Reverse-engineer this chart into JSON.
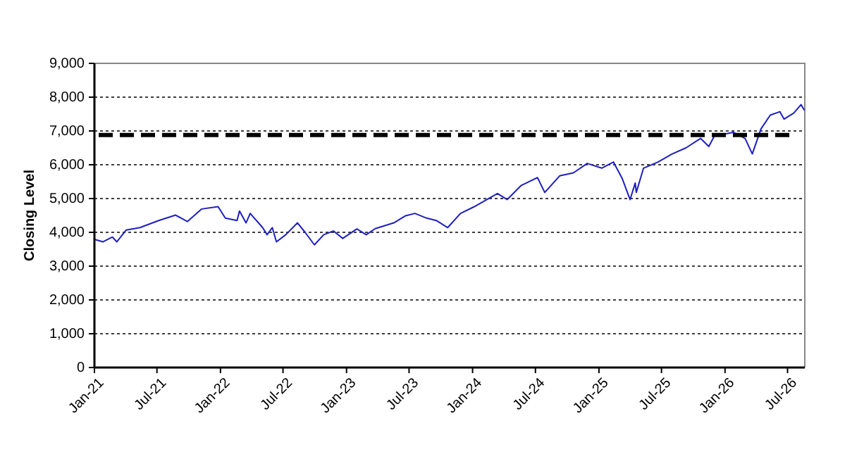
{
  "chart_data": {
    "type": "line",
    "ylabel": "Closing Level",
    "x": [
      "2021-01-01",
      "2021-01-26",
      "2021-02-22",
      "2021-03-07",
      "2021-04-03",
      "2021-05-13",
      "2021-07-06",
      "2021-08-24",
      "2021-09-27",
      "2021-11-07",
      "2021-12-25",
      "2022-01-15",
      "2022-02-18",
      "2022-02-25",
      "2022-03-16",
      "2022-03-28",
      "2022-05-03",
      "2022-05-16",
      "2022-05-31",
      "2022-06-12",
      "2022-07-09",
      "2022-08-12",
      "2022-09-03",
      "2022-09-30",
      "2022-10-27",
      "2022-11-24",
      "2022-12-21",
      "2023-01-31",
      "2023-02-27",
      "2023-03-25",
      "2023-05-18",
      "2023-06-21",
      "2023-07-18",
      "2023-08-21",
      "2023-09-18",
      "2023-10-21",
      "2023-11-27",
      "2024-01-06",
      "2024-03-13",
      "2024-04-10",
      "2024-05-21",
      "2024-07-07",
      "2024-07-28",
      "2024-09-09",
      "2024-10-19",
      "2024-11-28",
      "2025-01-09",
      "2025-02-12",
      "2025-03-09",
      "2025-04-01",
      "2025-04-16",
      "2025-04-19",
      "2025-05-10",
      "2025-06-21",
      "2025-08-01",
      "2025-09-10",
      "2025-10-22",
      "2025-11-15",
      "2025-12-01",
      "2026-01-25",
      "2026-02-28",
      "2026-03-21",
      "2026-04-15",
      "2026-05-12",
      "2026-06-09",
      "2026-06-21",
      "2026-07-19",
      "2026-08-09",
      "2026-08-19"
    ],
    "series": [
      {
        "color": "#1f1fbf",
        "values": [
          3790,
          3720,
          3860,
          3720,
          4070,
          4140,
          4350,
          4510,
          4320,
          4690,
          4760,
          4420,
          4350,
          4630,
          4280,
          4560,
          4140,
          3930,
          4140,
          3720,
          3930,
          4280,
          4000,
          3630,
          3930,
          4040,
          3820,
          4100,
          3930,
          4110,
          4280,
          4490,
          4560,
          4420,
          4350,
          4140,
          4560,
          4760,
          5150,
          4970,
          5390,
          5620,
          5180,
          5670,
          5760,
          6040,
          5900,
          6080,
          5600,
          4970,
          5460,
          5180,
          5900,
          6080,
          6320,
          6500,
          6780,
          6540,
          6850,
          6960,
          6780,
          6320,
          7060,
          7470,
          7570,
          7350,
          7530,
          7780,
          7610
        ]
      }
    ],
    "xlim": [
      "2021-01-01",
      "2026-08-20"
    ],
    "xticks": [
      {
        "value": "2021-01-01",
        "label": "Jan-21"
      },
      {
        "value": "2021-07-01",
        "label": "Jul-21"
      },
      {
        "value": "2022-01-01",
        "label": "Jan-22"
      },
      {
        "value": "2022-07-01",
        "label": "Jul-22"
      },
      {
        "value": "2023-01-01",
        "label": "Jan-23"
      },
      {
        "value": "2023-07-01",
        "label": "Jul-23"
      },
      {
        "value": "2024-01-01",
        "label": "Jan-24"
      },
      {
        "value": "2024-07-01",
        "label": "Jul-24"
      },
      {
        "value": "2025-01-01",
        "label": "Jan-25"
      },
      {
        "value": "2025-07-01",
        "label": "Jul-25"
      },
      {
        "value": "2026-01-01",
        "label": "Jan-26"
      },
      {
        "value": "2026-07-01",
        "label": "Jul-26"
      }
    ],
    "ylim": [
      0,
      9000
    ],
    "yticks": [
      {
        "value": 0,
        "label": "0"
      },
      {
        "value": 1000,
        "label": "1,000"
      },
      {
        "value": 2000,
        "label": "2,000"
      },
      {
        "value": 3000,
        "label": "3,000"
      },
      {
        "value": 4000,
        "label": "4,000"
      },
      {
        "value": 5000,
        "label": "5,000"
      },
      {
        "value": 6000,
        "label": "6,000"
      },
      {
        "value": 7000,
        "label": "7,000"
      },
      {
        "value": 8000,
        "label": "8,000"
      },
      {
        "value": 9000,
        "label": "9,000"
      }
    ],
    "grid": "y",
    "line_style": "solid",
    "marker": "none",
    "ref_lines": [
      {
        "axis": "y",
        "value": 6880,
        "color": "#000000",
        "line_style": "dashed"
      }
    ]
  }
}
